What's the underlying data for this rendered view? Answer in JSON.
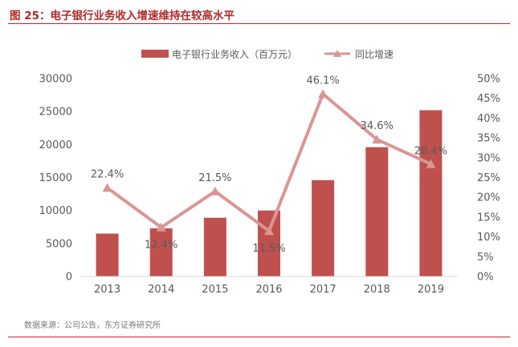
{
  "figure": {
    "title": "图 25：电子银行业务收入增速维持在较高水平",
    "source": "数据来源：公司公告，东方证券研究所"
  },
  "colors": {
    "bar": "#c0504d",
    "line": "#d99694",
    "accent": "#b1282b",
    "axis_text": "#595959"
  },
  "chart_data": {
    "type": "bar",
    "categories": [
      "2013",
      "2014",
      "2015",
      "2016",
      "2017",
      "2018",
      "2019"
    ],
    "series": [
      {
        "name": "电子银行业务收入（百万元）",
        "type": "bar",
        "axis": "left",
        "values": [
          6500,
          7300,
          8900,
          10000,
          14600,
          19600,
          25200
        ]
      },
      {
        "name": "同比增速",
        "type": "line",
        "axis": "right",
        "values": [
          22.4,
          12.4,
          21.5,
          11.5,
          46.1,
          34.6,
          28.4
        ],
        "labels": [
          "22.4%",
          "12.4%",
          "21.5%",
          "11.5%",
          "46.1%",
          "34.6%",
          "28.4%"
        ]
      }
    ],
    "ylim": [
      0,
      30000
    ],
    "yticks": [
      "0",
      "5000",
      "10000",
      "15000",
      "20000",
      "25000",
      "30000"
    ],
    "y2lim": [
      0,
      50
    ],
    "y2ticks": [
      "0%",
      "5%",
      "10%",
      "15%",
      "20%",
      "25%",
      "30%",
      "35%",
      "40%",
      "45%",
      "50%"
    ],
    "legend_position": "top-center",
    "grid": false
  }
}
